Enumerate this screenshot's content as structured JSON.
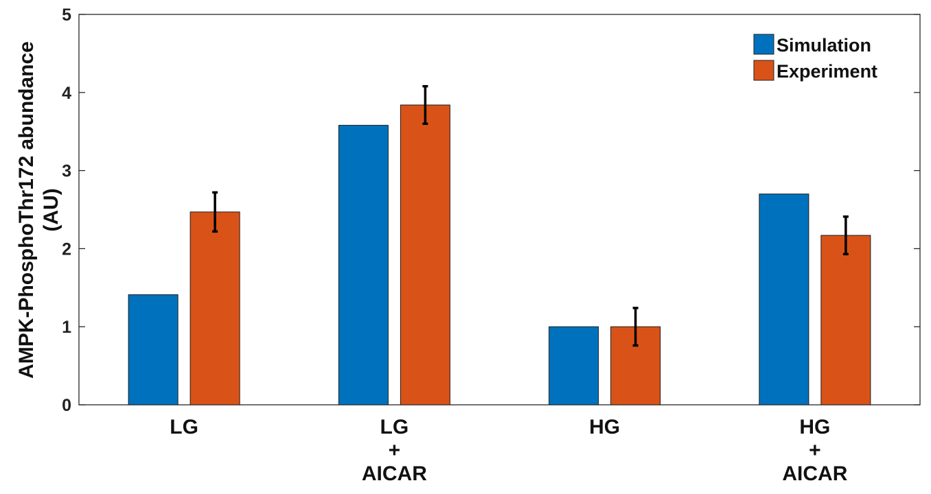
{
  "chart_data": {
    "type": "bar",
    "title": "",
    "xlabel": "",
    "ylabel_lines": [
      "AMPK-PhosphoThr172 abundance",
      "(AU)"
    ],
    "ylim": [
      0,
      5
    ],
    "yticks": [
      "0",
      "1",
      "2",
      "3",
      "4",
      "5"
    ],
    "grid": false,
    "legend_position": "top-right",
    "categories": [
      [
        "LG"
      ],
      [
        "LG",
        "+",
        "AICAR"
      ],
      [
        "HG"
      ],
      [
        "HG",
        "+",
        "AICAR"
      ]
    ],
    "series": [
      {
        "name": "Simulation",
        "color": "#0072BD",
        "values": [
          1.41,
          3.58,
          1.0,
          2.7
        ]
      },
      {
        "name": "Experiment",
        "color": "#D95319",
        "values": [
          2.47,
          3.84,
          1.0,
          2.17
        ],
        "errors": [
          0.25,
          0.24,
          0.24,
          0.24
        ]
      }
    ]
  }
}
